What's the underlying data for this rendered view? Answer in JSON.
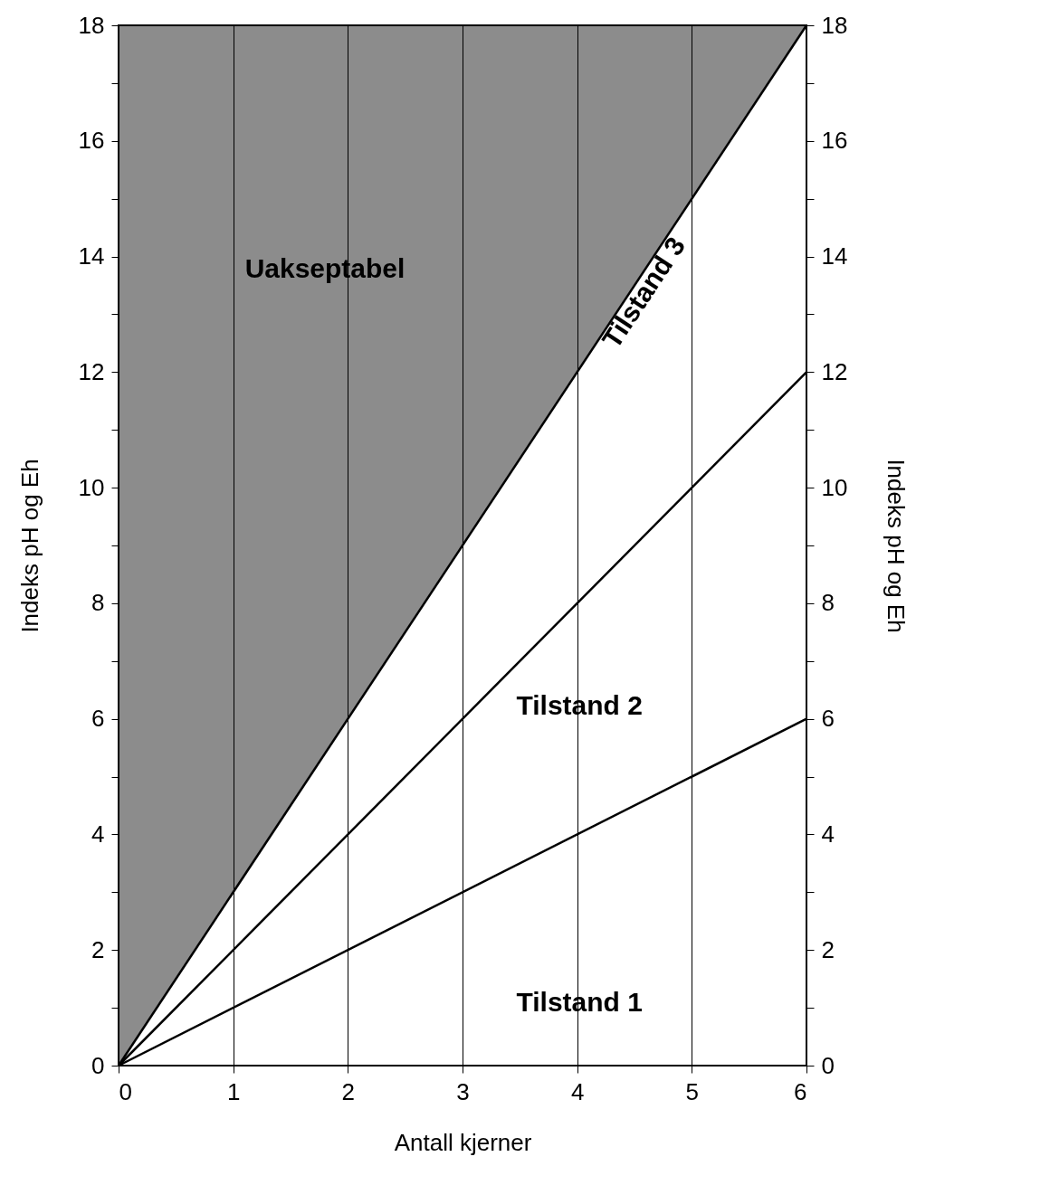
{
  "chart_data": {
    "type": "line",
    "xlabel": "Antall kjerner",
    "ylabel": "Indeks pH og Eh",
    "y2label": "Indeks pH og Eh",
    "xlim": [
      0,
      6
    ],
    "xticks": [
      0,
      1,
      2,
      3,
      4,
      5,
      6
    ],
    "ylim": [
      0,
      18
    ],
    "yticks": [
      0,
      {
        "value": 1,
        "label": null
      },
      2,
      {
        "value": 3,
        "label": null
      },
      4,
      {
        "value": 5,
        "label": null
      },
      6,
      {
        "value": 7,
        "label": null
      },
      8,
      {
        "value": 9,
        "label": null
      },
      10,
      {
        "value": 11,
        "label": null
      },
      12,
      {
        "value": 13,
        "label": null
      },
      14,
      {
        "value": 15,
        "label": null
      },
      16,
      {
        "value": 17,
        "label": null
      },
      18
    ],
    "y2lim": [
      0,
      18
    ],
    "y2ticks": [
      0,
      {
        "value": 1,
        "label": null
      },
      2,
      {
        "value": 3,
        "label": null
      },
      4,
      {
        "value": 5,
        "label": null
      },
      6,
      {
        "value": 7,
        "label": null
      },
      8,
      {
        "value": 9,
        "label": null
      },
      10,
      {
        "value": 11,
        "label": null
      },
      12,
      {
        "value": 13,
        "label": null
      },
      14,
      {
        "value": 15,
        "label": null
      },
      16,
      {
        "value": 17,
        "label": null
      },
      18
    ],
    "grid": "x",
    "x": [
      0,
      6
    ],
    "series": [
      {
        "values": [
          0,
          18
        ],
        "lower": [
          0,
          18
        ],
        "upper": [
          18,
          18
        ],
        "color": "#000000"
      },
      {
        "values": [
          0,
          12
        ],
        "color": "#000000"
      },
      {
        "values": [
          0,
          6
        ],
        "color": "#000000"
      }
    ],
    "annotations": [
      "Uakseptabel",
      {
        "text": "Tilstand 3",
        "x": 4.4,
        "y": 13.2
      },
      "Tilstand 2",
      "Tilstand 1"
    ]
  }
}
